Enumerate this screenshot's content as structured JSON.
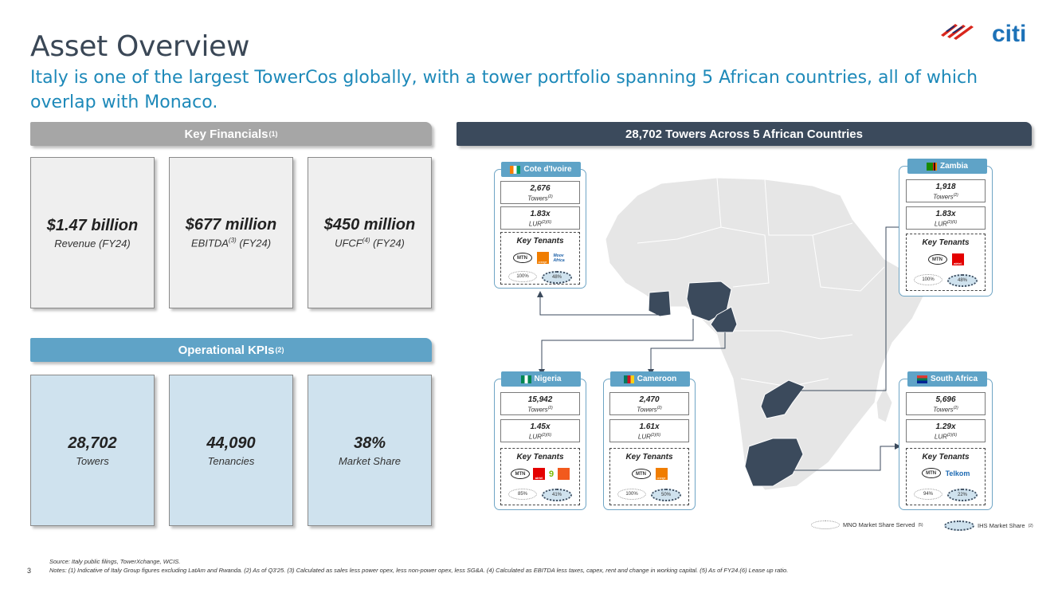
{
  "header": {
    "title": "Asset Overview",
    "subtitle": "Italy is one of the largest TowerCos globally, with a tower portfolio spanning 5 African countries, all of which overlap with Monaco.",
    "logo_text": "citi"
  },
  "key_financials": {
    "heading": "Key Financials",
    "heading_note": "(1)",
    "boxes": [
      {
        "value": "$1.47 billion",
        "label": "Revenue (FY24)",
        "label_pre": "Revenue",
        "label_sup": "",
        "label_post": " (FY24)"
      },
      {
        "value": "$677 million",
        "label_pre": "EBITDA",
        "label_sup": "(3)",
        "label_post": " (FY24)"
      },
      {
        "value": "$450 million",
        "label_pre": "UFCF",
        "label_sup": "(4)",
        "label_post": " (FY24)"
      }
    ]
  },
  "operational_kpis": {
    "heading": "Operational KPIs",
    "heading_note": "(2)",
    "boxes": [
      {
        "value": "28,702",
        "label": "Towers"
      },
      {
        "value": "44,090",
        "label": "Tenancies"
      },
      {
        "value": "38%",
        "label": "Market Share"
      }
    ]
  },
  "map_section": {
    "heading": "28,702 Towers Across 5 African Countries",
    "key_tenants_label": "Key Tenants",
    "towers_label": "Towers",
    "towers_note": "(2)",
    "lur_label": "LUR",
    "lur_note": "(2)(6)",
    "countries": [
      {
        "name": "Cote d'Ivoire",
        "towers": "2,676",
        "lur": "1.83x",
        "tenants": [
          "MTN",
          "orange",
          "Moov Africa"
        ],
        "mno_share": "100%",
        "ihs_share": "48%"
      },
      {
        "name": "Zambia",
        "towers": "1,918",
        "lur": "1.83x",
        "tenants": [
          "MTN",
          "airtel"
        ],
        "mno_share": "100%",
        "ihs_share": "48%"
      },
      {
        "name": "Nigeria",
        "towers": "15,942",
        "lur": "1.45x",
        "tenants": [
          "MTN",
          "airtel",
          "9mobile",
          "glo"
        ],
        "mno_share": "85%",
        "ihs_share": "41%"
      },
      {
        "name": "Cameroon",
        "towers": "2,470",
        "lur": "1.61x",
        "tenants": [
          "MTN",
          "orange"
        ],
        "mno_share": "100%",
        "ihs_share": "50%"
      },
      {
        "name": "South Africa",
        "towers": "5,696",
        "lur": "1.29x",
        "tenants": [
          "MTN",
          "Telkom"
        ],
        "mno_share": "94%",
        "ihs_share": "22%"
      }
    ],
    "legend": {
      "mno": "MNO Market Share Served",
      "mno_note": "(5)",
      "ihs": "IHS Market Share",
      "ihs_note": "(2)"
    }
  },
  "footer": {
    "source": "Source: Italy public filings, TowerXchange, WCIS.",
    "notes": "Notes: (1) Indicative of Italy Group figures excluding LatAm and Rwanda. (2) As of Q3'25. (3) Calculated as sales less power opex, less non-power opex, less SG&A. (4) Calculated as EBITDA less taxes, capex, rent and change in working capital. (5) As of FY24.(6) Lease up ratio.",
    "page_number": "3"
  },
  "colors": {
    "title": "#3a4756",
    "subtitle": "#1d89b9",
    "gray_bar": "#a6a6a6",
    "blue_bar": "#5fa3c7",
    "navy_bar": "#3b4a5c",
    "kpi_fill": "#cfe2ee",
    "map_land": "#e8e8e8",
    "map_highlight": "#3b4a5c"
  }
}
